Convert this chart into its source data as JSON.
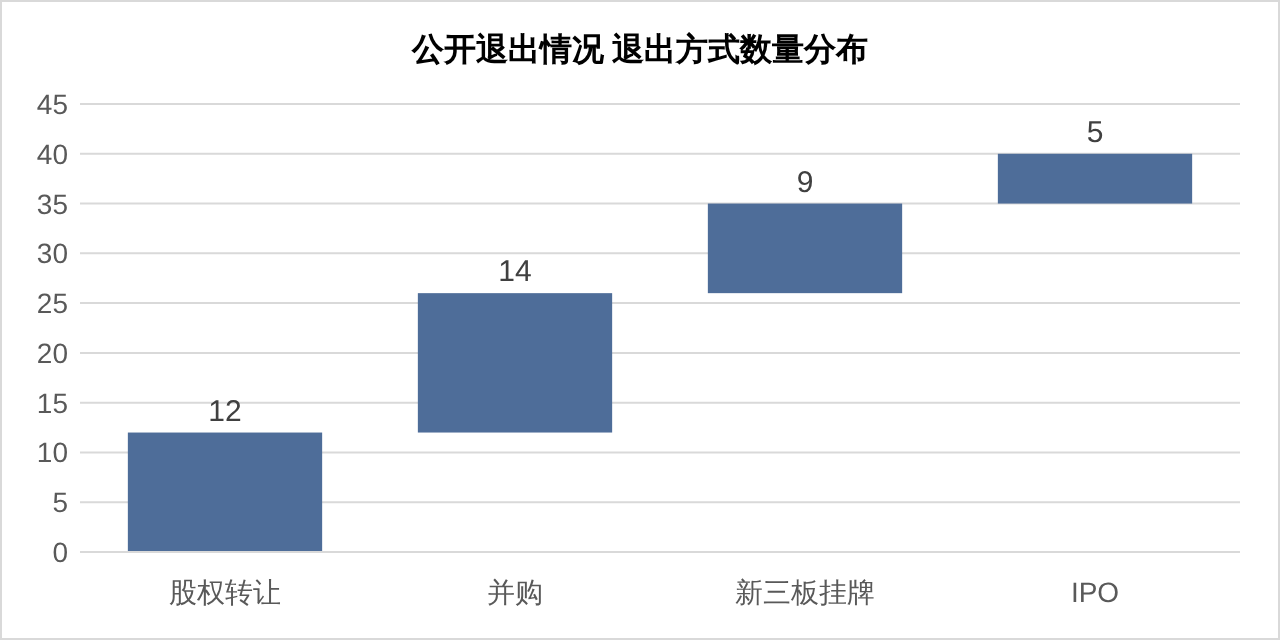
{
  "chart_data": {
    "type": "bar",
    "title": "公开退出情况 退出方式数量分布",
    "categories": [
      "股权转让",
      "并购",
      "新三板挂牌",
      "IPO"
    ],
    "values": [
      12,
      14,
      9,
      5
    ],
    "base": [
      0,
      12,
      26,
      35
    ],
    "color": "#4e6d99",
    "ylim": [
      0,
      45
    ],
    "yticks": [
      0,
      5,
      10,
      15,
      20,
      25,
      30,
      35,
      40,
      45
    ],
    "grid": "y",
    "data_labels": true
  }
}
